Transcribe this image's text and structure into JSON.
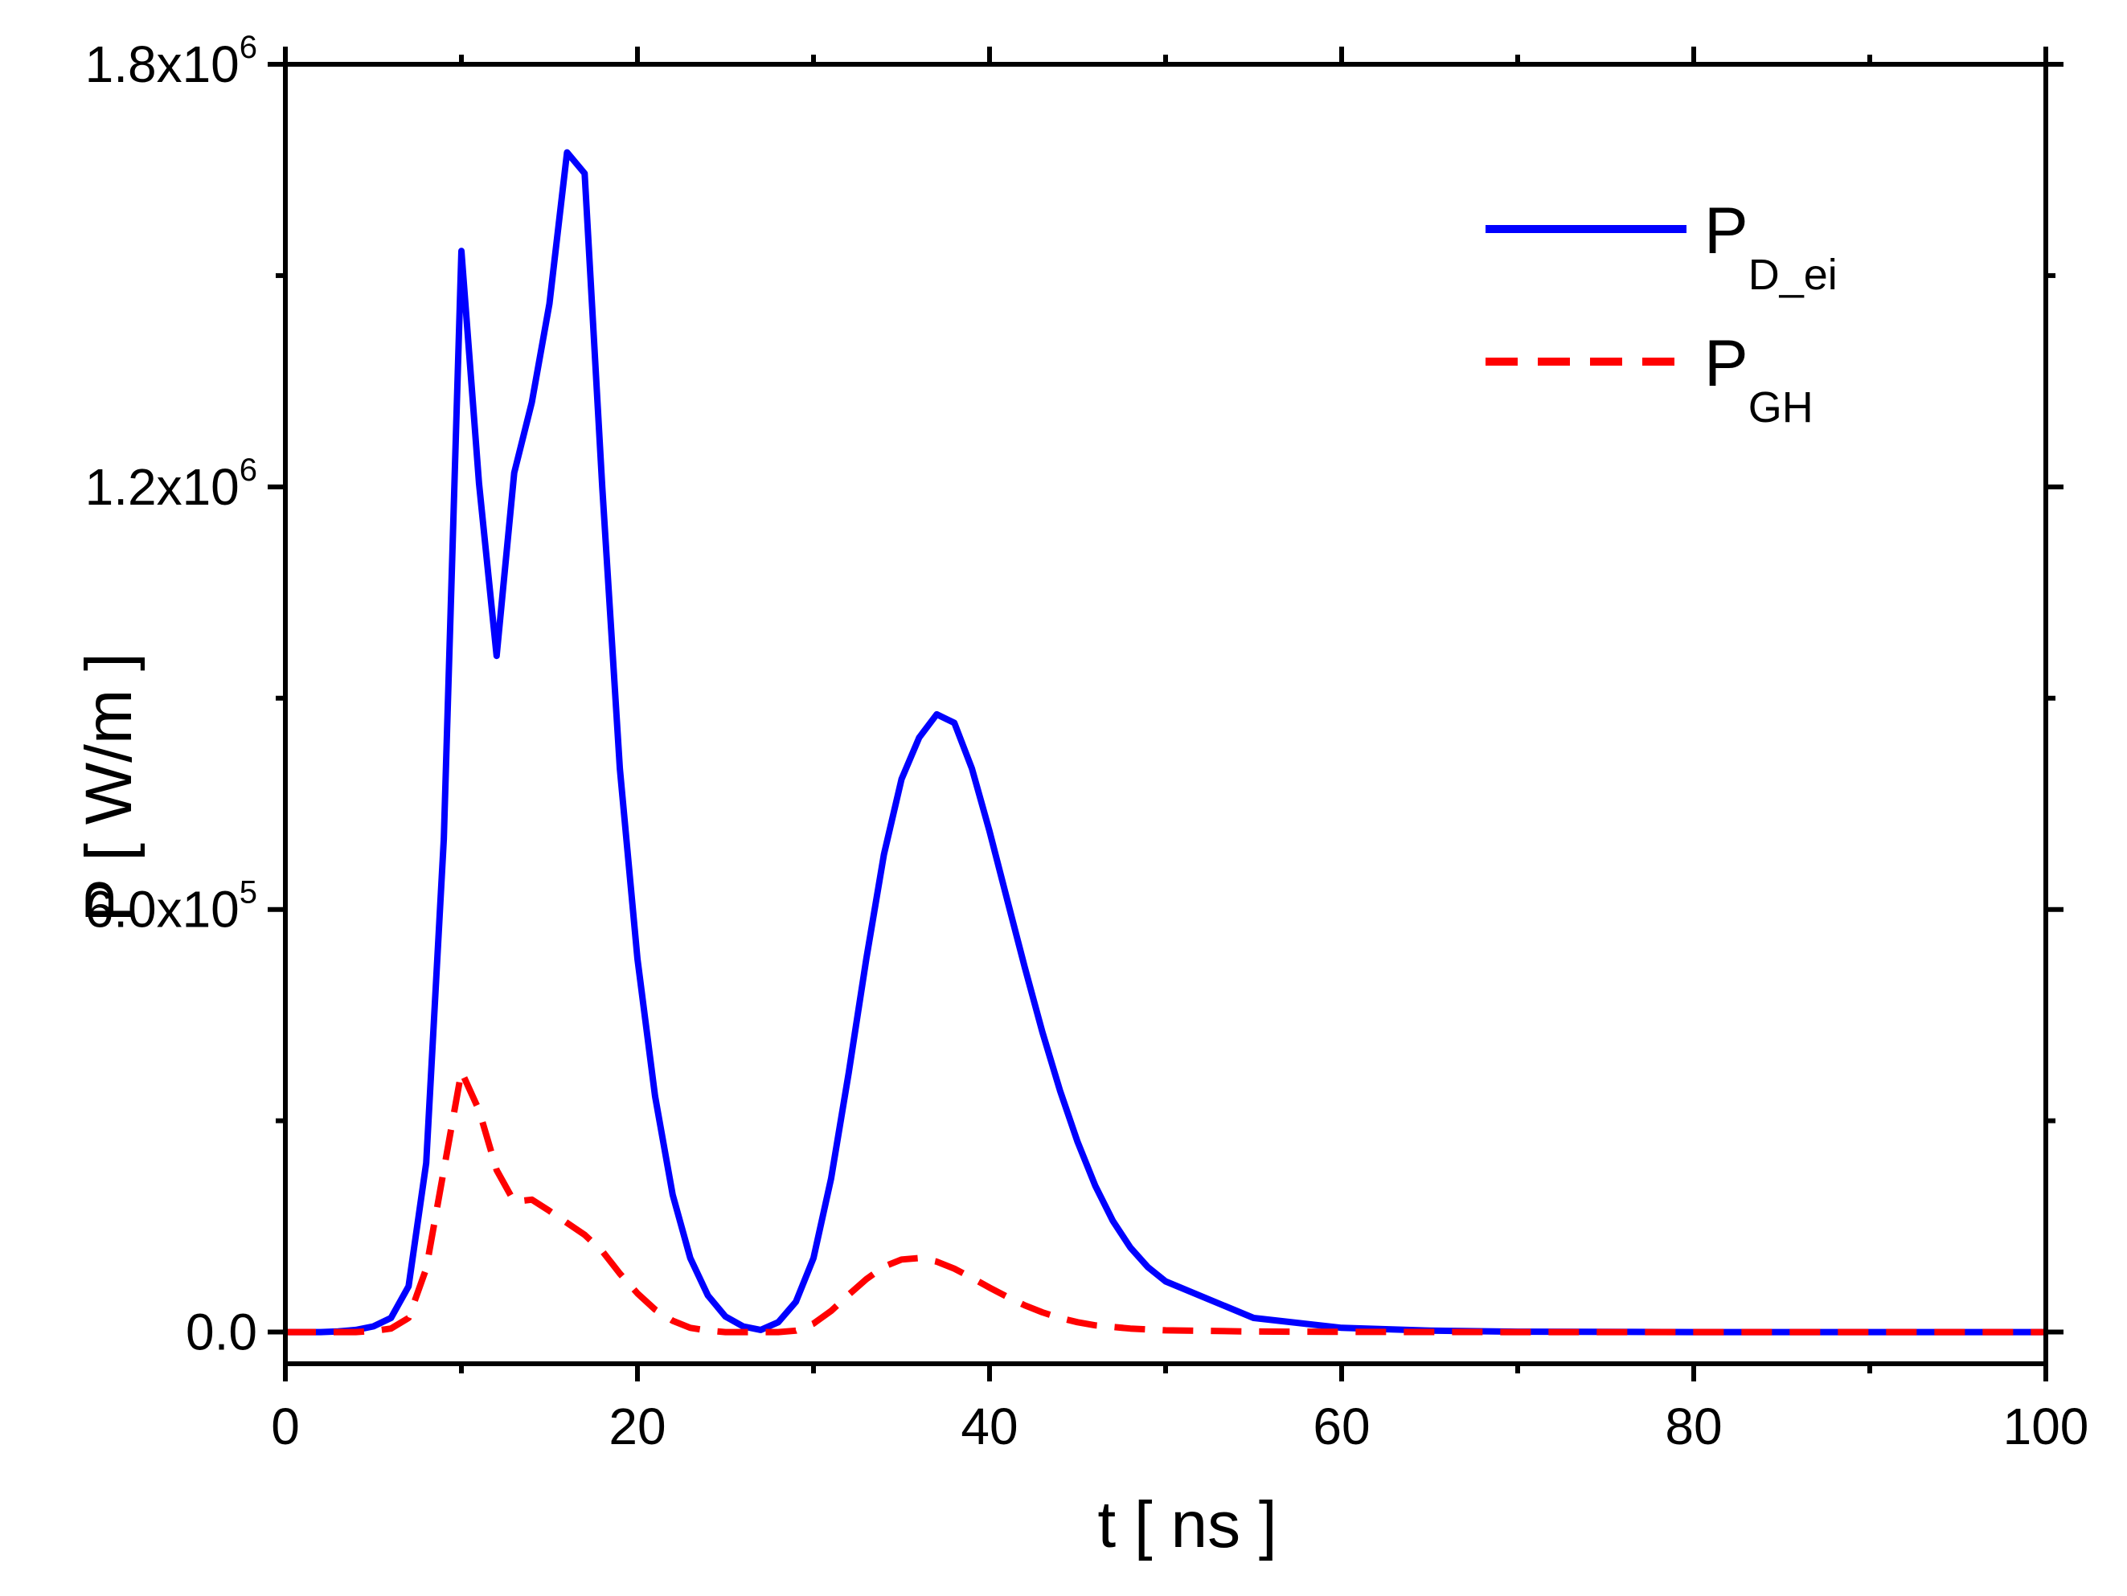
{
  "chart_data": {
    "type": "line",
    "xlabel": "t [ ns ]",
    "ylabel": "P [ W/m ]",
    "xlim": [
      0,
      100
    ],
    "ylim": [
      -45000,
      1800000
    ],
    "x_ticks": [
      0,
      20,
      40,
      60,
      80,
      100
    ],
    "x_tick_labels": [
      "0",
      "20",
      "40",
      "60",
      "80",
      "100"
    ],
    "y_ticks": [
      0,
      600000,
      1200000,
      1800000
    ],
    "y_tick_labels": [
      {
        "mantissa": "0.0",
        "exponent": ""
      },
      {
        "mantissa": "6.0x10",
        "exponent": "5"
      },
      {
        "mantissa": "1.2x10",
        "exponent": "6"
      },
      {
        "mantissa": "1.8x10",
        "exponent": "6"
      }
    ],
    "legend_position": "top-right",
    "series": [
      {
        "name": "P_D_ei",
        "legend_main": "P",
        "legend_sub": "D_ei",
        "color": "#0000ff",
        "style": "solid",
        "x": [
          0,
          1,
          2,
          3,
          4,
          5,
          6,
          7,
          8,
          9,
          10,
          11,
          12,
          13,
          14,
          15,
          16,
          17,
          18,
          19,
          20,
          21,
          22,
          23,
          24,
          25,
          26,
          27,
          28,
          29,
          30,
          31,
          32,
          33,
          34,
          35,
          36,
          37,
          38,
          39,
          40,
          41,
          42,
          43,
          44,
          45,
          46,
          47,
          48,
          49,
          50,
          55,
          60,
          65,
          70,
          80,
          90,
          100
        ],
        "y": [
          0,
          0,
          0,
          1000,
          3000,
          8000,
          20000,
          65000,
          240000,
          700000,
          1535000,
          1205000,
          960000,
          1220000,
          1320000,
          1460000,
          1675000,
          1645000,
          1200000,
          800000,
          530000,
          335000,
          195000,
          105000,
          52000,
          22000,
          8000,
          3000,
          14000,
          43000,
          105000,
          218000,
          368000,
          530000,
          678000,
          785000,
          844000,
          877000,
          865000,
          800000,
          711000,
          614000,
          518000,
          426000,
          343000,
          270000,
          208000,
          158000,
          120000,
          92000,
          72000,
          20000,
          6000,
          2000,
          500,
          0,
          0,
          0
        ]
      },
      {
        "name": "P_GH",
        "legend_main": "P",
        "legend_sub": "GH",
        "color": "#ff0000",
        "style": "dashed",
        "x": [
          0,
          2,
          4,
          5,
          6,
          7,
          8,
          9,
          10,
          11,
          12,
          13,
          14,
          15,
          16,
          17,
          18,
          19,
          20,
          21,
          22,
          23,
          24,
          25,
          26,
          27,
          28,
          29,
          30,
          31,
          32,
          33,
          34,
          35,
          36,
          37,
          38,
          39,
          40,
          41,
          42,
          43,
          44,
          45,
          46,
          48,
          50,
          55,
          60,
          65,
          70,
          80,
          90,
          100
        ],
        "y": [
          0,
          0,
          0,
          1500,
          5000,
          20000,
          90000,
          230000,
          370000,
          315000,
          230000,
          185000,
          188000,
          172000,
          155000,
          138000,
          115000,
          83000,
          55000,
          32000,
          16000,
          6000,
          2000,
          0,
          0,
          0,
          0,
          2000,
          12000,
          30000,
          53000,
          75000,
          93000,
          103000,
          105000,
          100000,
          90000,
          77000,
          63000,
          50000,
          38000,
          28000,
          20000,
          14000,
          9500,
          5000,
          2500,
          800,
          300,
          100,
          0,
          0,
          0,
          0
        ]
      }
    ]
  }
}
